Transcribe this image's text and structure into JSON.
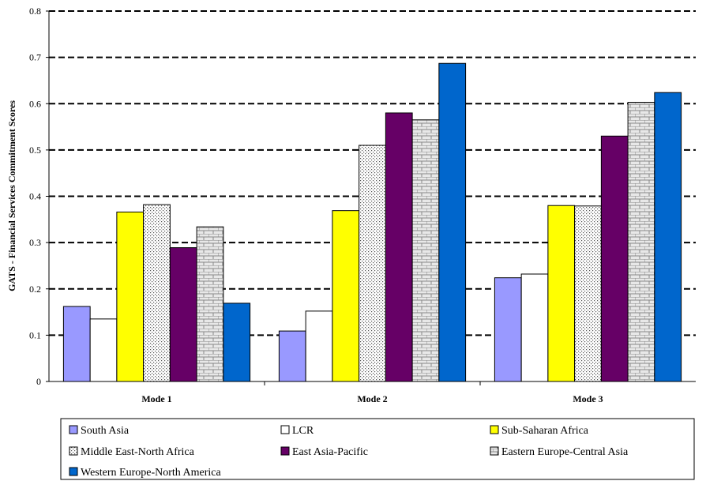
{
  "chart_data": {
    "type": "bar",
    "title": "",
    "xlabel": "",
    "ylabel": "GATS - Financial Services Commitment Scores",
    "ylim": [
      0,
      0.8
    ],
    "yticks": [
      "0",
      "0.1",
      "0.2",
      "0.3",
      "0.4",
      "0.5",
      "0.6",
      "0.7",
      "0.8"
    ],
    "grid": "dashed horizontal",
    "legend_position": "bottom",
    "categories": [
      "Mode 1",
      "Mode 2",
      "Mode 3"
    ],
    "series": [
      {
        "name": "South Asia",
        "values": [
          0.162,
          0.109,
          0.224
        ],
        "color": "#9999ff",
        "pattern": "solid"
      },
      {
        "name": "LCR",
        "values": [
          0.135,
          0.152,
          0.232
        ],
        "color": "#ffffff",
        "pattern": "solid"
      },
      {
        "name": "Sub-Saharan Africa",
        "values": [
          0.366,
          0.369,
          0.38
        ],
        "color": "#ffff00",
        "pattern": "solid"
      },
      {
        "name": "Middle East-North Africa",
        "values": [
          0.382,
          0.51,
          0.379
        ],
        "color": "#ffffff",
        "pattern": "dots"
      },
      {
        "name": "East Asia-Pacific",
        "values": [
          0.289,
          0.58,
          0.53
        ],
        "color": "#660066",
        "pattern": "solid"
      },
      {
        "name": "Eastern Europe-Central Asia",
        "values": [
          0.334,
          0.565,
          0.603
        ],
        "color": "#ffffff",
        "pattern": "bricks"
      },
      {
        "name": "Western Europe-North America",
        "values": [
          0.169,
          0.687,
          0.624
        ],
        "color": "#0066cc",
        "pattern": "solid"
      }
    ]
  }
}
